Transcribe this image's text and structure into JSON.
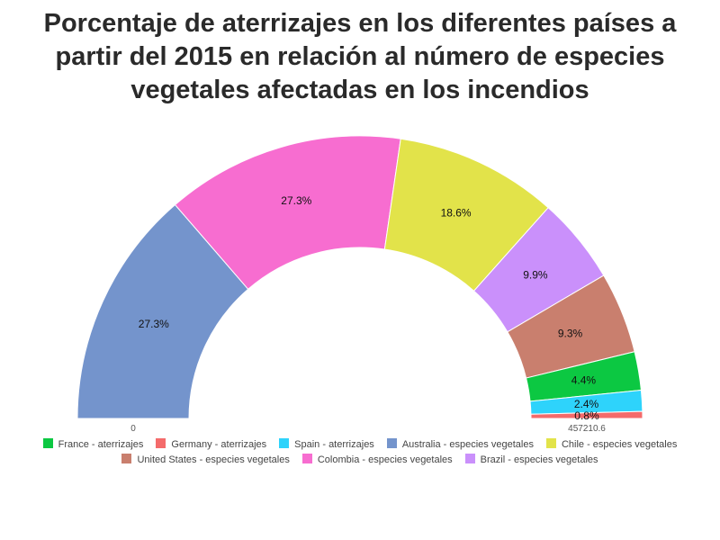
{
  "chart_data": {
    "type": "pie",
    "subtype": "semicircle-donut",
    "title_lines": [
      "Porcentaje de aterrizajes en los diferentes países a",
      "partir del 2015 en relación al número de especies",
      "vegetales afectadas en los incendios"
    ],
    "axis_min_label": "0",
    "axis_max_label": "457210.6",
    "slices": [
      {
        "name": "Australia - especies vegetales",
        "value": 27.3,
        "label": "27.3%",
        "color": "#7494cc"
      },
      {
        "name": "Colombia - especies vegetales",
        "value": 27.3,
        "label": "27.3%",
        "color": "#f76dd0"
      },
      {
        "name": "Chile - especies vegetales",
        "value": 18.6,
        "label": "18.6%",
        "color": "#e2e34a"
      },
      {
        "name": "Brazil - especies vegetales",
        "value": 9.9,
        "label": "9.9%",
        "color": "#ca90fb"
      },
      {
        "name": "United States - especies vegetales",
        "value": 9.3,
        "label": "9.3%",
        "color": "#c97f6e"
      },
      {
        "name": "France - aterrizajes",
        "value": 4.4,
        "label": "4.4%",
        "color": "#0cc842"
      },
      {
        "name": "Spain - aterrizajes",
        "value": 2.4,
        "label": "2.4%",
        "color": "#2ed3fb"
      },
      {
        "name": "Germany - aterrizajes",
        "value": 0.8,
        "label": "0.8%",
        "color": "#f46b6b"
      }
    ],
    "legend_placement": "bottom",
    "legend_rows": [
      [
        "France - aterrizajes",
        "Germany - aterrizajes",
        "Spain - aterrizajes",
        "Australia - especies vegetales",
        "Chile - especies vegetales"
      ],
      [
        "United States - especies vegetales",
        "Colombia - especies vegetales",
        "Brazil - especies vegetales"
      ]
    ]
  }
}
